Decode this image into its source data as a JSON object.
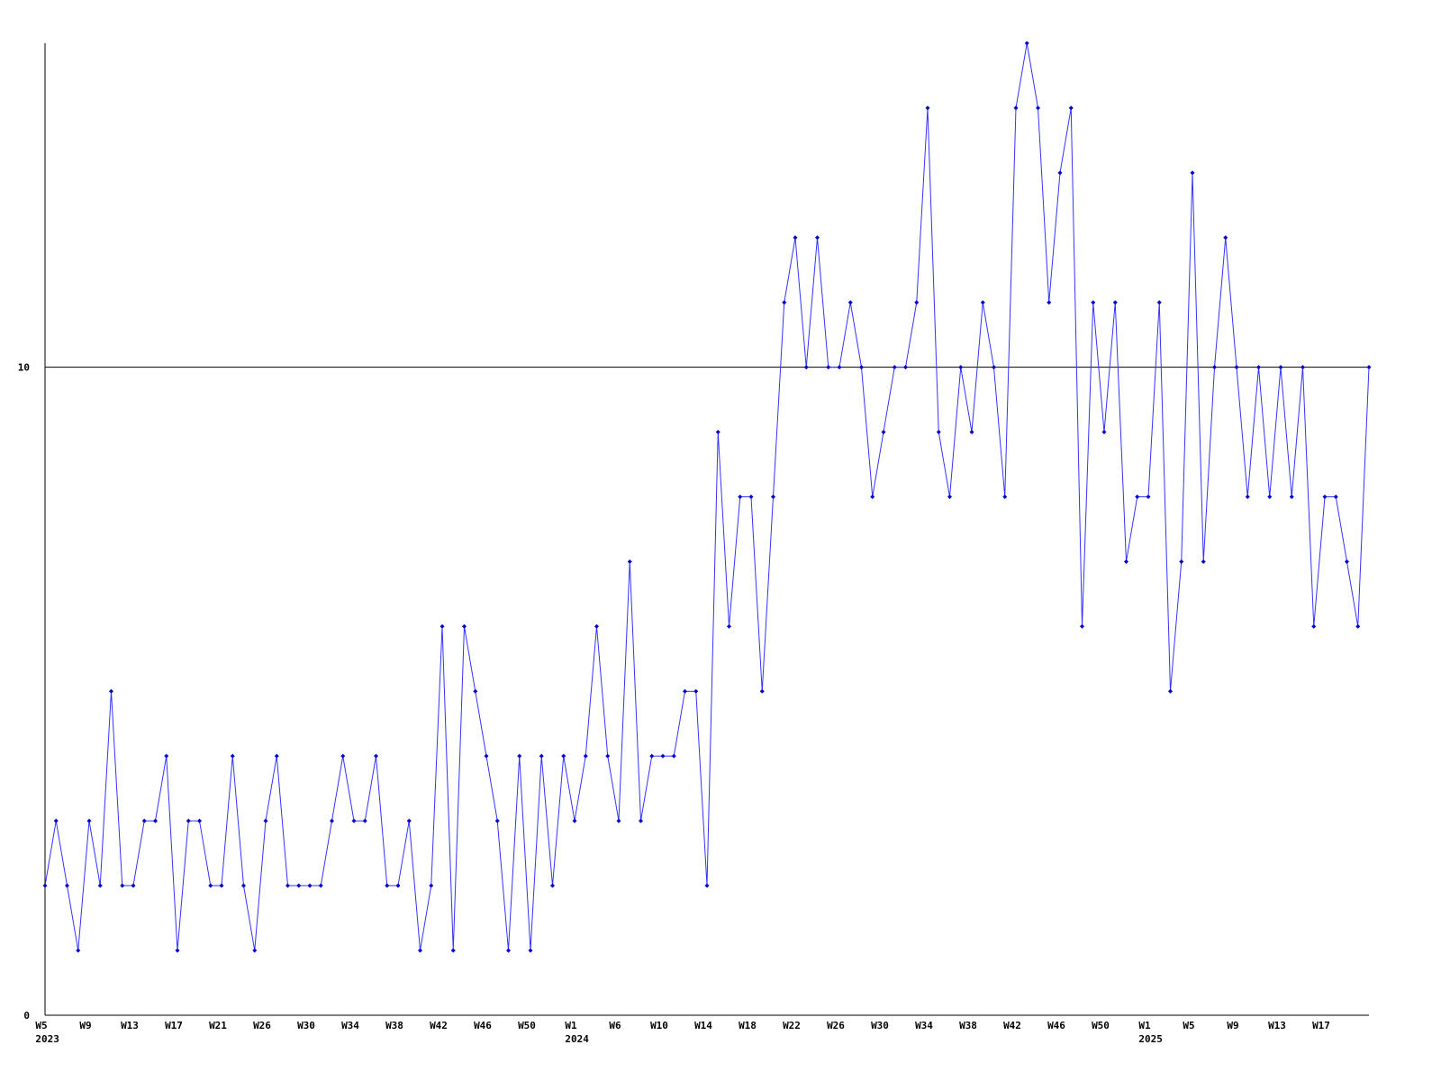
{
  "chart_data": {
    "type": "line",
    "categories": [
      "W5\n2023",
      null,
      null,
      null,
      "W9",
      null,
      null,
      null,
      "W13",
      null,
      null,
      null,
      "W17",
      null,
      null,
      null,
      "W21",
      null,
      null,
      null,
      "W26",
      null,
      null,
      null,
      "W30",
      null,
      null,
      null,
      "W34",
      null,
      null,
      null,
      "W38",
      null,
      null,
      null,
      "W42",
      null,
      null,
      null,
      "W46",
      null,
      null,
      null,
      "W50",
      null,
      null,
      null,
      "W1\n2024",
      null,
      null,
      null,
      "W6",
      null,
      null,
      null,
      "W10",
      null,
      null,
      null,
      "W14",
      null,
      null,
      null,
      "W18",
      null,
      null,
      null,
      "W22",
      null,
      null,
      null,
      "W26",
      null,
      null,
      null,
      "W30",
      null,
      null,
      null,
      "W34",
      null,
      null,
      null,
      "W38",
      null,
      null,
      null,
      "W42",
      null,
      null,
      null,
      "W46",
      null,
      null,
      null,
      "W50",
      null,
      null,
      null,
      "W1\n2025",
      null,
      null,
      null,
      "W5",
      null,
      null,
      null,
      "W9",
      null,
      null,
      null,
      "W13",
      null,
      null,
      null,
      "W17",
      null,
      null,
      null,
      null
    ],
    "values": [
      2,
      3,
      2,
      1,
      3,
      2,
      5,
      2,
      2,
      3,
      3,
      4,
      1,
      3,
      3,
      2,
      2,
      4,
      2,
      1,
      3,
      4,
      2,
      2,
      2,
      2,
      3,
      4,
      3,
      3,
      4,
      2,
      2,
      3,
      1,
      2,
      6,
      1,
      6,
      5,
      4,
      3,
      1,
      4,
      1,
      4,
      2,
      4,
      3,
      4,
      6,
      4,
      3,
      7,
      3,
      4,
      4,
      4,
      5,
      5,
      2,
      9,
      6,
      8,
      8,
      5,
      8,
      11,
      12,
      10,
      12,
      10,
      10,
      11,
      10,
      8,
      9,
      10,
      10,
      11,
      14,
      9,
      8,
      10,
      9,
      11,
      10,
      8,
      14,
      15,
      14,
      11,
      13,
      14,
      6,
      11,
      9,
      11,
      7,
      8,
      8,
      11,
      5,
      7,
      13,
      7,
      10,
      12,
      10,
      8,
      10,
      8,
      10,
      8,
      10,
      6,
      8,
      8,
      7,
      6,
      10
    ],
    "color": "#3333ff",
    "marker_color": "#0000cc",
    "ylim": [
      0,
      15
    ],
    "yticks": [
      0,
      10
    ],
    "grid": true
  }
}
